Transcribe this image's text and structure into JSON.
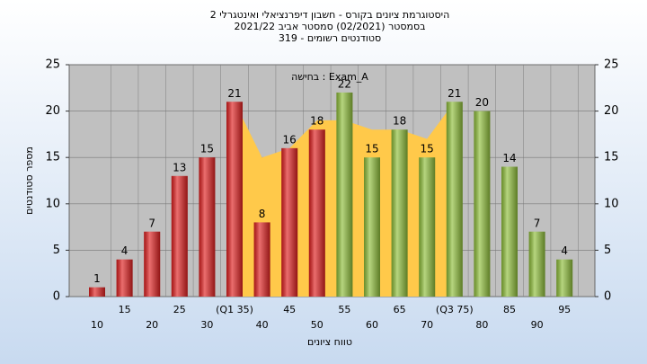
{
  "chart_data": {
    "type": "bar",
    "title": "היסטוגרמת ציונים בקורס - חשבון דיפרנציאלי ואינטגרלי 2",
    "subtitle": "בסמסטר  (02/2021)  סמסטר אביב 2021/22",
    "subtitle2": "סטודנטים רשומים - 319",
    "annotation": "בחישה : Exam_A",
    "x_label": "טווח ציונים",
    "y_label": "מספר סטודנטים",
    "categories": [
      "10",
      "15",
      "20",
      "25",
      "30",
      "(Q1 35)",
      "40",
      "45",
      "50",
      "55",
      "60",
      "65",
      "70",
      "(Q3 75)",
      "80",
      "85",
      "90",
      "95"
    ],
    "values": [
      1,
      4,
      7,
      13,
      15,
      21,
      8,
      16,
      18,
      22,
      15,
      18,
      15,
      21,
      20,
      14,
      7,
      4
    ],
    "colors": [
      "#e02020",
      "#e02020",
      "#e02020",
      "#e02020",
      "#e02020",
      "#e02020",
      "#e02020",
      "#e02020",
      "#e02020",
      "#8fbf3a",
      "#8fbf3a",
      "#8fbf3a",
      "#8fbf3a",
      "#8fbf3a",
      "#8fbf3a",
      "#8fbf3a",
      "#8fbf3a",
      "#8fbf3a"
    ],
    "area": {
      "color": "#ffc94a",
      "values": [
        null,
        null,
        null,
        null,
        null,
        21,
        15,
        16,
        19,
        19,
        18,
        18,
        17,
        21,
        null,
        null,
        null,
        null
      ]
    },
    "ylim": [
      0,
      25
    ],
    "yticks": [
      0,
      5,
      10,
      15,
      20,
      25
    ],
    "grid": true
  }
}
